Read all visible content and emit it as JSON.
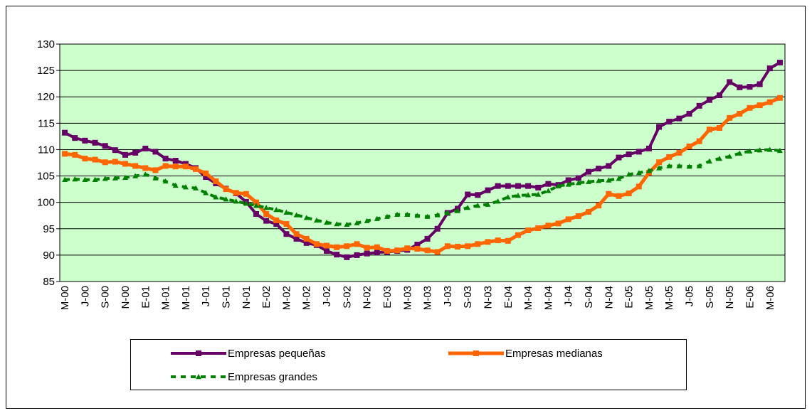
{
  "chart_data": {
    "type": "line",
    "categories": [
      "M-00",
      null,
      "J-00",
      null,
      "S-00",
      null,
      "N-00",
      null,
      "E-01",
      null,
      "M-01",
      null,
      "M-01",
      null,
      "J-01",
      null,
      "S-01",
      null,
      "N-01",
      null,
      "E-02",
      null,
      "M-02",
      null,
      "M-02",
      null,
      "J-02",
      null,
      "S-02",
      null,
      "N-02",
      null,
      "E-03",
      null,
      "M-03",
      null,
      "M-03",
      null,
      "J-03",
      null,
      "S-03",
      null,
      "N-03",
      null,
      "E-04",
      null,
      "M-04",
      null,
      "M-04",
      null,
      "J-04",
      null,
      "S-04",
      null,
      "N-04",
      null,
      "E-05",
      null,
      "M-05",
      null,
      "M-05",
      null,
      "J-05",
      null,
      "S-05",
      null,
      "N-05",
      null,
      "E-06",
      null,
      "M-06",
      null
    ],
    "series": [
      {
        "name": "Empresas pequeñas",
        "color": "#660066",
        "marker": "square",
        "dashed": false,
        "values": [
          113.2,
          112.2,
          111.7,
          111.3,
          110.7,
          109.9,
          109.0,
          109.4,
          110.2,
          109.6,
          108.3,
          107.9,
          107.3,
          106.5,
          104.8,
          103.6,
          102.6,
          101.7,
          100.1,
          97.8,
          96.5,
          95.9,
          94.0,
          93.1,
          92.3,
          91.9,
          90.8,
          90.1,
          89.6,
          90.0,
          90.3,
          90.5,
          90.6,
          90.8,
          91.0,
          92.0,
          93.1,
          95.0,
          98.0,
          98.8,
          101.5,
          101.4,
          102.3,
          103.1,
          103.1,
          103.1,
          103.1,
          102.8,
          103.5,
          103.3,
          104.2,
          104.6,
          105.8,
          106.4,
          106.9,
          108.5,
          109.1,
          109.6,
          110.2,
          114.3,
          115.3,
          115.9,
          116.8,
          118.3,
          119.4,
          120.3,
          122.8,
          121.8,
          121.9,
          122.4,
          125.4,
          126.5
        ]
      },
      {
        "name": "Empresas medianas",
        "color": "#ff6600",
        "marker": "square",
        "dashed": false,
        "values": [
          109.2,
          109.0,
          108.3,
          108.1,
          107.6,
          107.7,
          107.3,
          106.9,
          106.5,
          106.1,
          106.9,
          106.8,
          106.8,
          106.3,
          105.5,
          104.0,
          102.5,
          101.8,
          101.6,
          100.0,
          97.8,
          96.6,
          95.9,
          94.0,
          93.1,
          92.1,
          91.8,
          91.5,
          91.7,
          92.1,
          91.4,
          91.5,
          90.8,
          90.9,
          91.3,
          91.2,
          90.9,
          90.6,
          91.7,
          91.6,
          91.7,
          92.1,
          92.5,
          92.8,
          92.7,
          93.8,
          94.7,
          95.1,
          95.6,
          96.0,
          96.8,
          97.4,
          98.2,
          99.4,
          101.6,
          101.2,
          101.7,
          103.0,
          105.6,
          107.6,
          108.6,
          109.4,
          110.6,
          111.6,
          113.8,
          114.1,
          116.0,
          116.8,
          117.9,
          118.4,
          119.0,
          119.8
        ]
      },
      {
        "name": "Empresas grandes",
        "color": "#008000",
        "marker": "triangle",
        "dashed": true,
        "values": [
          104.3,
          104.4,
          104.3,
          104.3,
          104.5,
          104.6,
          104.7,
          105.0,
          105.3,
          104.6,
          104.0,
          103.2,
          102.9,
          102.7,
          101.8,
          101.0,
          100.6,
          100.2,
          99.8,
          99.4,
          99.0,
          98.6,
          98.1,
          97.6,
          97.1,
          96.6,
          96.2,
          95.9,
          95.8,
          96.1,
          96.5,
          96.9,
          97.3,
          97.7,
          97.7,
          97.5,
          97.3,
          97.6,
          98.0,
          98.4,
          99.0,
          99.4,
          99.6,
          100.2,
          101.0,
          101.3,
          101.4,
          101.5,
          102.2,
          103.1,
          103.4,
          103.7,
          103.9,
          104.1,
          104.2,
          104.5,
          105.3,
          105.6,
          106.0,
          106.5,
          106.9,
          106.9,
          106.8,
          106.9,
          107.8,
          108.3,
          108.7,
          109.3,
          109.7,
          109.9,
          110.0,
          109.8
        ]
      }
    ],
    "ylim": [
      85,
      130
    ],
    "yticks": [
      85,
      90,
      95,
      100,
      105,
      110,
      115,
      120,
      125,
      130
    ],
    "grid": true,
    "plot_background": "#ccffcc"
  }
}
